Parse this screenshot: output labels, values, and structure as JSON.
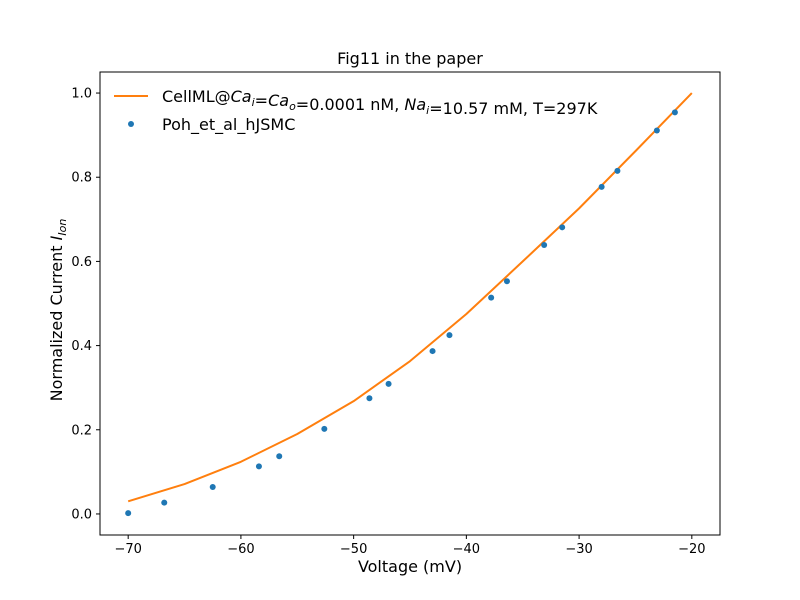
{
  "chart_data": {
    "type": "line",
    "title": "Fig11 in the paper",
    "xlabel": "Voltage (mV)",
    "ylabel": "Normalized Current",
    "ylabel_sub": "Ion",
    "xlim": [
      -72.5,
      -17.5
    ],
    "ylim": [
      -0.05,
      1.05
    ],
    "xticks": [
      -70,
      -60,
      -50,
      -40,
      -30,
      -20
    ],
    "yticks": [
      0.0,
      0.2,
      0.4,
      0.6,
      0.8,
      1.0
    ],
    "xtick_labels": [
      "−70",
      "−60",
      "−50",
      "−40",
      "−30",
      "−20"
    ],
    "ytick_labels": [
      "0.0",
      "0.2",
      "0.4",
      "0.6",
      "0.8",
      "1.0"
    ],
    "grid": false,
    "legend_position": "top-left",
    "series": [
      {
        "name": "CellML@Ca_i=Ca_o=0.0001 nM, Na_i=10.57 mM, T=297K",
        "kind": "line",
        "color": "#ff7f0e",
        "x": [
          -70,
          -65,
          -60,
          -55,
          -50,
          -45,
          -40,
          -35,
          -30,
          -25,
          -20
        ],
        "y": [
          0.03,
          0.071,
          0.124,
          0.19,
          0.268,
          0.363,
          0.475,
          0.6,
          0.726,
          0.862,
          1.0
        ]
      },
      {
        "name": "Poh_et_al_hJSMC",
        "kind": "scatter",
        "color": "#1f77b4",
        "x": [
          -70,
          -66.8,
          -62.5,
          -58.4,
          -56.6,
          -52.6,
          -48.6,
          -46.9,
          -43.0,
          -41.5,
          -37.8,
          -36.4,
          -33.1,
          -31.5,
          -28.0,
          -26.6,
          -23.1,
          -21.5
        ],
        "y": [
          0.002,
          0.027,
          0.064,
          0.113,
          0.137,
          0.202,
          0.275,
          0.309,
          0.387,
          0.425,
          0.514,
          0.553,
          0.639,
          0.681,
          0.777,
          0.815,
          0.911,
          0.954
        ]
      }
    ],
    "legend": {
      "line_label_parts": [
        {
          "t": "CellML@",
          "s": ""
        },
        {
          "t": "Ca",
          "s": "i"
        },
        {
          "t": "=",
          "s": ""
        },
        {
          "t": "Ca",
          "s": "o"
        },
        {
          "t": "=0.0001 nM, ",
          "s": ""
        },
        {
          "t": "Na",
          "s": "i"
        },
        {
          "t": "=10.57 mM, T=297K",
          "s": ""
        }
      ],
      "scatter_label": "Poh_et_al_hJSMC"
    }
  }
}
